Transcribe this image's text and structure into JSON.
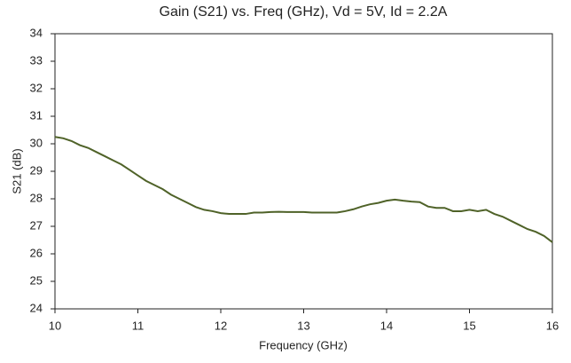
{
  "chart_data": {
    "type": "line",
    "title": "Gain (S21) vs. Freq (GHz), Vd = 5V, Id = 2.2A",
    "x_label": "Frequency (GHz)",
    "y_label": "S21 (dB)",
    "x": [
      10.0,
      10.1,
      10.2,
      10.3,
      10.4,
      10.5,
      10.6,
      10.7,
      10.8,
      10.9,
      11.0,
      11.1,
      11.2,
      11.3,
      11.4,
      11.5,
      11.6,
      11.7,
      11.8,
      11.9,
      12.0,
      12.1,
      12.2,
      12.3,
      12.4,
      12.5,
      12.6,
      12.7,
      12.8,
      12.9,
      13.0,
      13.1,
      13.2,
      13.3,
      13.4,
      13.5,
      13.6,
      13.7,
      13.8,
      13.9,
      14.0,
      14.1,
      14.2,
      14.3,
      14.4,
      14.5,
      14.6,
      14.7,
      14.8,
      14.9,
      15.0,
      15.1,
      15.2,
      15.3,
      15.4,
      15.5,
      15.6,
      15.7,
      15.8,
      15.9,
      16.0
    ],
    "series": [
      {
        "name": "S21",
        "color": "#4f6228",
        "values": [
          30.25,
          30.2,
          30.1,
          29.95,
          29.85,
          29.7,
          29.55,
          29.4,
          29.25,
          29.05,
          28.85,
          28.65,
          28.5,
          28.35,
          28.15,
          28.0,
          27.85,
          27.7,
          27.6,
          27.55,
          27.48,
          27.45,
          27.45,
          27.45,
          27.5,
          27.5,
          27.52,
          27.53,
          27.52,
          27.52,
          27.52,
          27.5,
          27.5,
          27.5,
          27.5,
          27.55,
          27.62,
          27.72,
          27.8,
          27.85,
          27.93,
          27.97,
          27.93,
          27.9,
          27.88,
          27.72,
          27.67,
          27.67,
          27.55,
          27.55,
          27.6,
          27.55,
          27.6,
          27.45,
          27.35,
          27.2,
          27.05,
          26.9,
          26.8,
          26.65,
          26.42
        ]
      }
    ],
    "xlim": [
      10,
      16
    ],
    "xticks": [
      10,
      11,
      12,
      13,
      14,
      15,
      16
    ],
    "ylim": [
      24,
      34
    ],
    "yticks": [
      24,
      25,
      26,
      27,
      28,
      29,
      30,
      31,
      32,
      33,
      34
    ],
    "grid": false
  }
}
